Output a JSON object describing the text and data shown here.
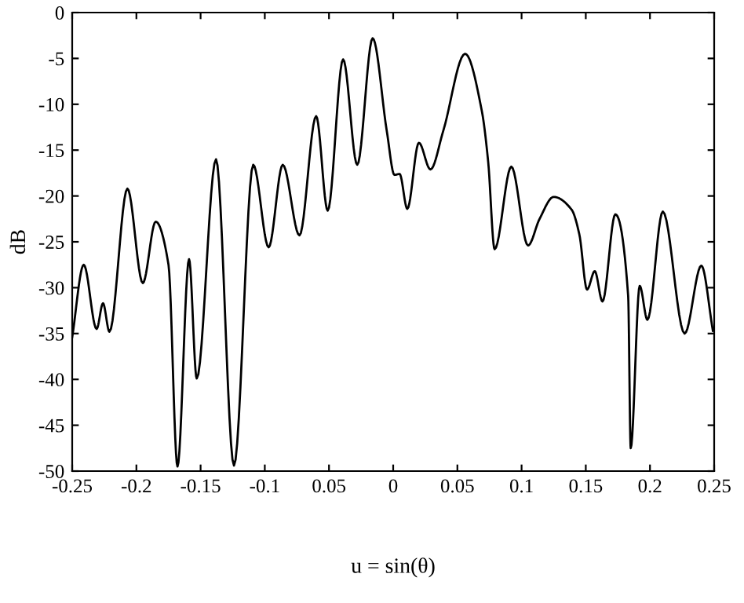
{
  "chart_data": {
    "type": "line",
    "xlabel": "u = sin(θ)",
    "ylabel": "dB",
    "xlim": [
      -0.25,
      0.25
    ],
    "ylim": [
      -50,
      0
    ],
    "xticks": [
      -0.25,
      -0.2,
      -0.15,
      -0.1,
      {
        "value": -0.05,
        "label": "0.05"
      },
      0,
      0.05,
      0.1,
      0.15,
      0.2,
      0.25
    ],
    "yticks": [
      -50,
      -45,
      -40,
      -35,
      -30,
      -25,
      -20,
      -15,
      -10,
      -5,
      0
    ],
    "grid": false,
    "legend": false,
    "marker": "none",
    "line_style": "solid",
    "series": [
      {
        "color": "#000000",
        "x": [
          -0.25,
          -0.241,
          -0.231,
          -0.226,
          -0.221,
          -0.207,
          -0.195,
          -0.185,
          -0.175,
          -0.168,
          -0.159,
          -0.153,
          -0.138,
          -0.124,
          -0.109,
          -0.097,
          -0.086,
          -0.073,
          -0.06,
          -0.051,
          -0.039,
          -0.028,
          -0.016,
          -0.005,
          0.001,
          0.005,
          0.011,
          0.02,
          0.029,
          0.039,
          0.056,
          0.069,
          0.074,
          0.079,
          0.092,
          0.105,
          0.114,
          0.125,
          0.139,
          0.145,
          0.151,
          0.157,
          0.163,
          0.173,
          0.183,
          0.185,
          0.192,
          0.198,
          0.21,
          0.227,
          0.24,
          0.249
        ],
        "values": [
          -35.4,
          -27.5,
          -34.5,
          -31.7,
          -34.8,
          -19.2,
          -29.5,
          -22.8,
          -27.5,
          -49.5,
          -26.9,
          -39.9,
          -16.0,
          -49.4,
          -16.6,
          -25.6,
          -16.6,
          -24.3,
          -11.3,
          -21.6,
          -5.1,
          -16.6,
          -2.8,
          -12.9,
          -17.7,
          -17.6,
          -21.4,
          -14.2,
          -17.1,
          -12.9,
          -4.5,
          -10.7,
          -16.3,
          -25.8,
          -16.8,
          -25.4,
          -22.5,
          -20.1,
          -21.5,
          -24.2,
          -30.2,
          -28.2,
          -31.5,
          -22.0,
          -30.9,
          -47.5,
          -29.8,
          -33.5,
          -21.7,
          -35.0,
          -27.6,
          -34.7
        ]
      }
    ]
  }
}
